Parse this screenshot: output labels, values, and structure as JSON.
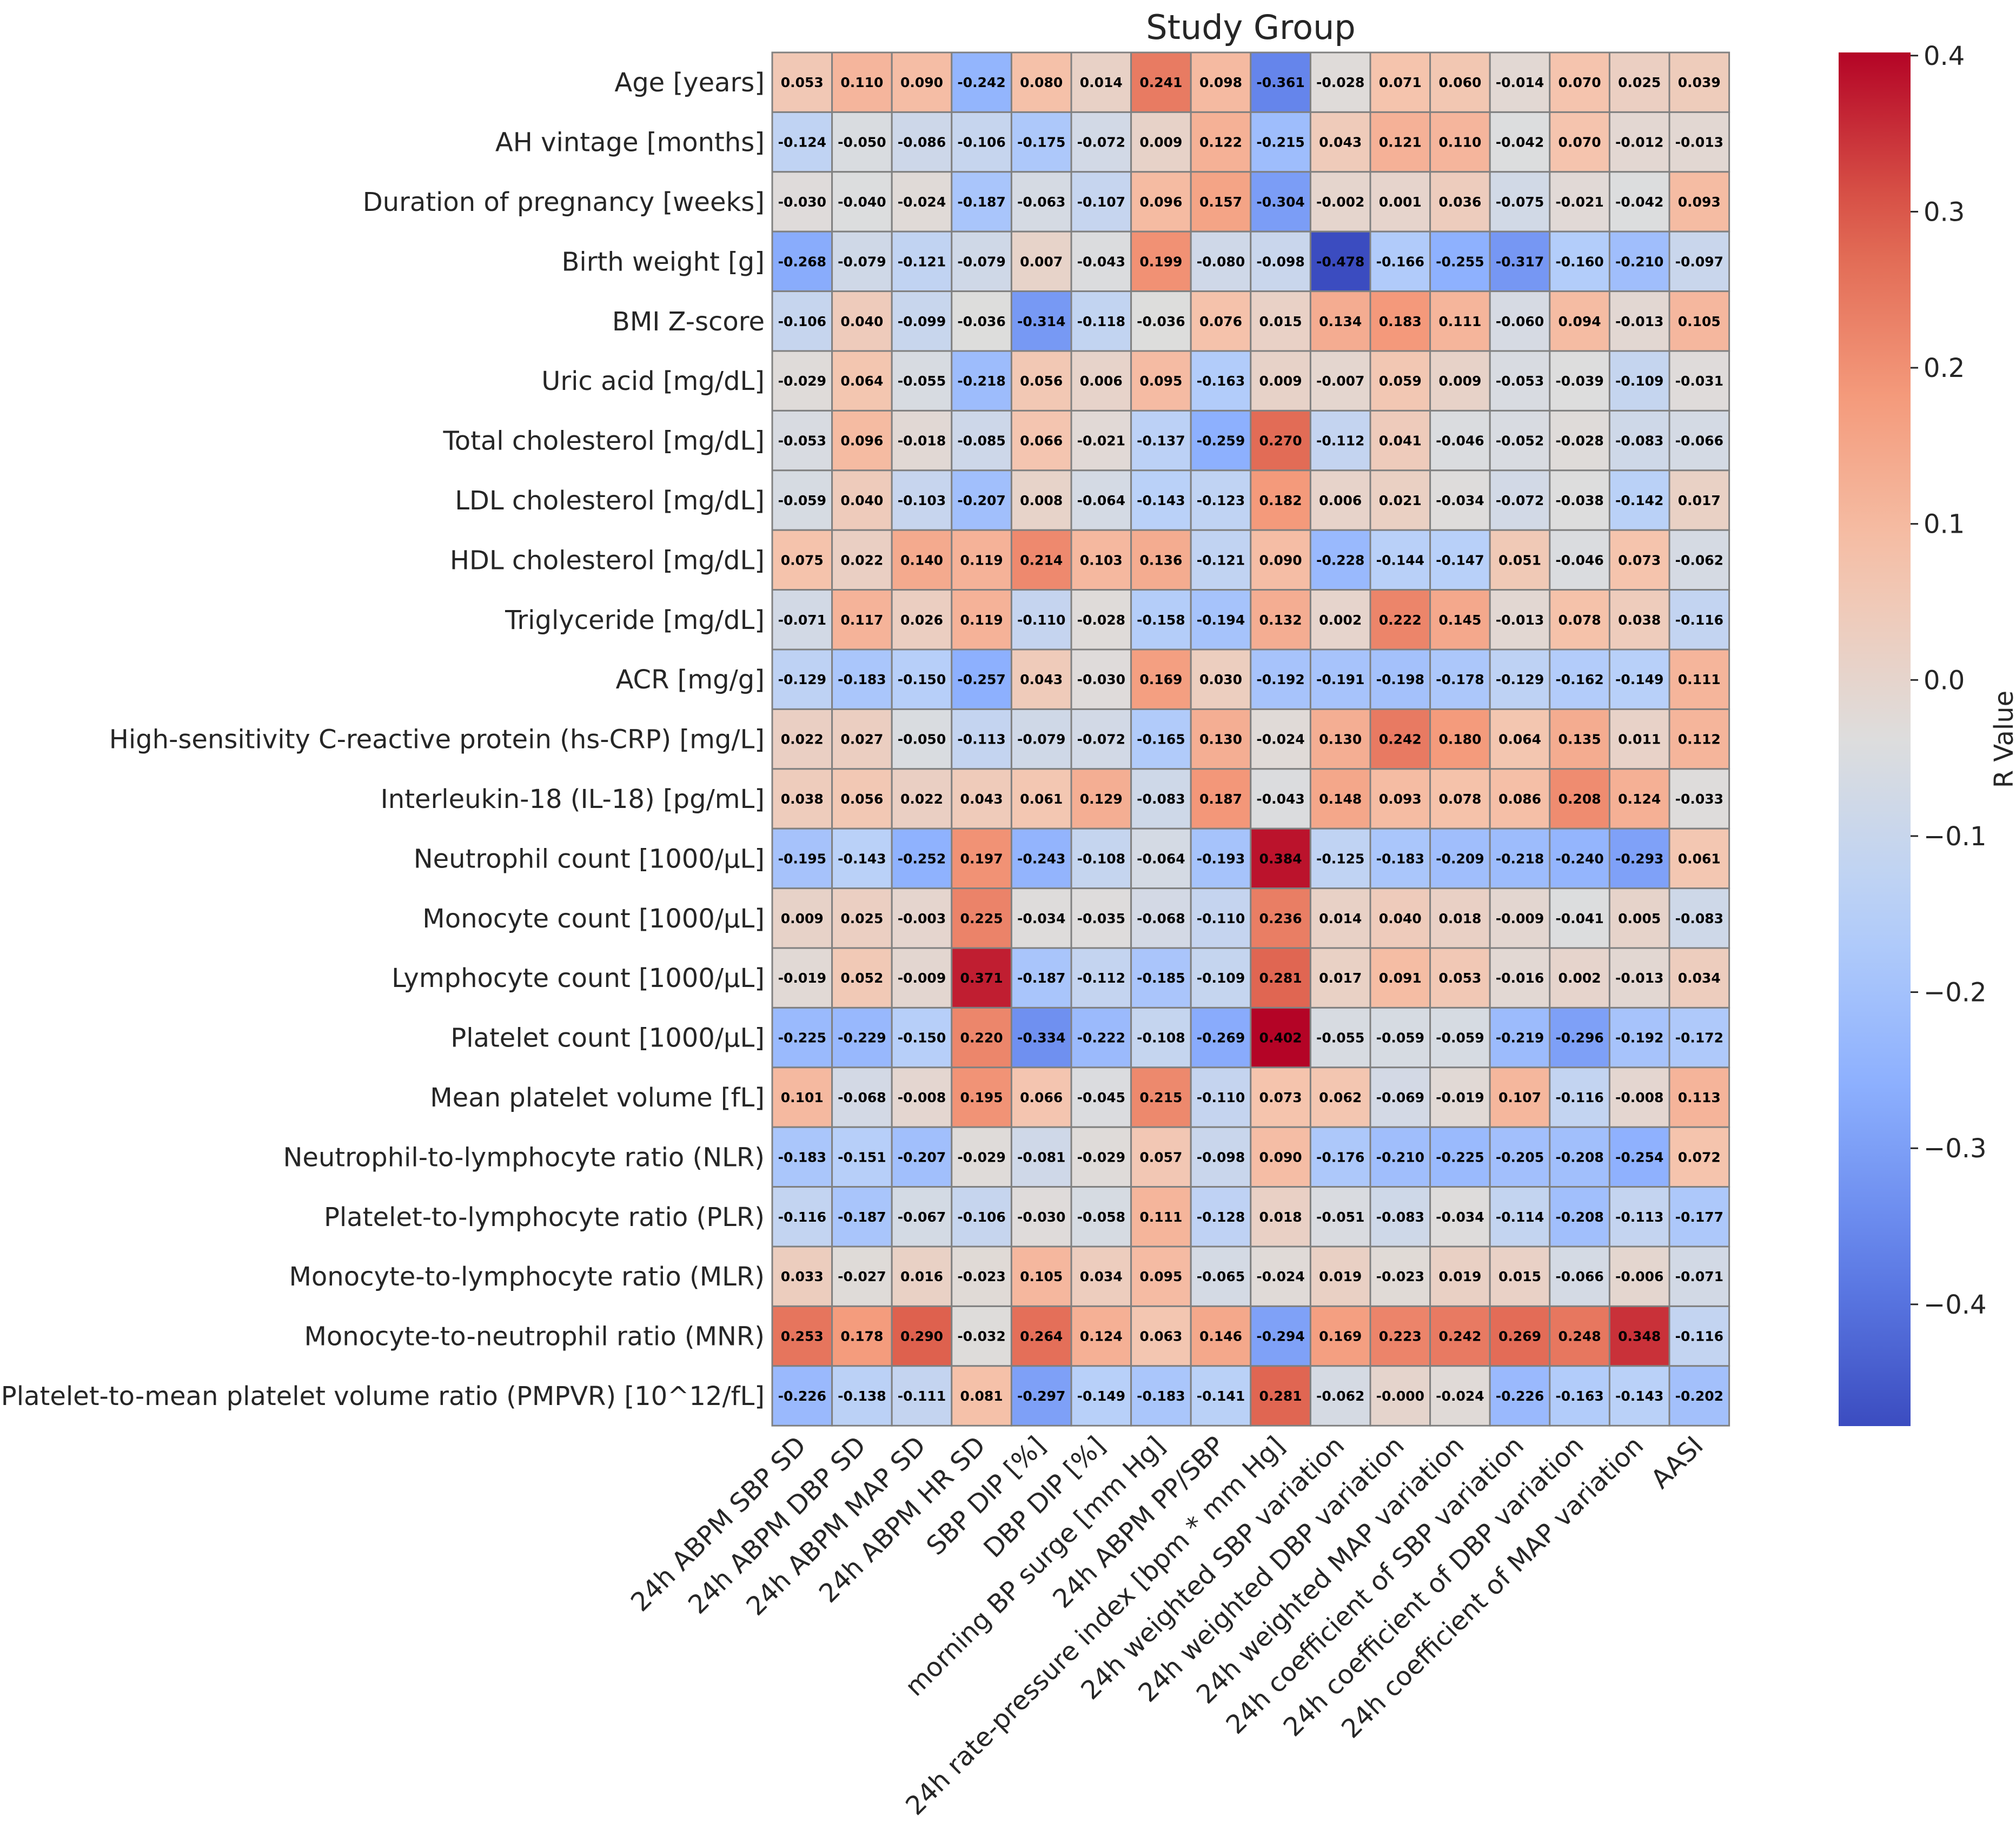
{
  "chart_data": {
    "type": "heatmap",
    "title": "Study Group",
    "colorbar_label": "R Value",
    "color_range": [
      -0.478,
      0.402
    ],
    "colorbar_ticks": [
      0.4,
      0.3,
      0.2,
      0.1,
      0.0,
      -0.1,
      -0.2,
      -0.3,
      -0.4
    ],
    "colorbar_tick_labels": [
      "0.4",
      "0.3",
      "0.2",
      "0.1",
      "0.0",
      "−0.1",
      "−0.2",
      "−0.3",
      "−0.4"
    ],
    "rows": [
      "Age [years]",
      "AH vintage [months]",
      "Duration of pregnancy [weeks]",
      "Birth weight [g]",
      "BMI Z-score",
      "Uric acid [mg/dL]",
      "Total cholesterol [mg/dL]",
      "LDL cholesterol [mg/dL]",
      "HDL cholesterol [mg/dL]",
      "Triglyceride [mg/dL]",
      "ACR [mg/g]",
      "High-sensitivity C-reactive protein (hs-CRP) [mg/L]",
      "Interleukin-18 (IL-18) [pg/mL]",
      "Neutrophil count [1000/µL]",
      "Monocyte count [1000/µL]",
      "Lymphocyte count [1000/µL]",
      "Platelet count [1000/µL]",
      "Mean platelet volume [fL]",
      "Neutrophil-to-lymphocyte ratio (NLR)",
      "Platelet-to-lymphocyte ratio (PLR)",
      "Monocyte-to-lymphocyte ratio (MLR)",
      "Monocyte-to-neutrophil ratio (MNR)",
      "Platelet-to-mean platelet volume ratio (PMPVR) [10^12/fL]"
    ],
    "columns": [
      "24h ABPM SBP SD",
      "24h ABPM DBP SD",
      "24h ABPM MAP SD",
      "24h ABPM HR SD",
      "SBP DIP [%]",
      "DBP DIP [%]",
      "morning BP surge [mm Hg]",
      "24h ABPM PP/SBP",
      "24h rate-pressure index [bpm * mm Hg]",
      "24h weighted SBP variation",
      "24h weighted DBP variation",
      "24h weighted MAP variation",
      "24h coefficient of SBP variation",
      "24h coefficient of DBP variation",
      "24h coefficient of MAP variation",
      "AASI"
    ],
    "values": [
      [
        "0.053",
        "0.110",
        "0.090",
        "-0.242",
        "0.080",
        "0.014",
        "0.241",
        "0.098",
        "-0.361",
        "-0.028",
        "0.071",
        "0.060",
        "-0.014",
        "0.070",
        "0.025",
        "0.039"
      ],
      [
        "-0.124",
        "-0.050",
        "-0.086",
        "-0.106",
        "-0.175",
        "-0.072",
        "0.009",
        "0.122",
        "-0.215",
        "0.043",
        "0.121",
        "0.110",
        "-0.042",
        "0.070",
        "-0.012",
        "-0.013"
      ],
      [
        "-0.030",
        "-0.040",
        "-0.024",
        "-0.187",
        "-0.063",
        "-0.107",
        "0.096",
        "0.157",
        "-0.304",
        "-0.002",
        "0.001",
        "0.036",
        "-0.075",
        "-0.021",
        "-0.042",
        "0.093"
      ],
      [
        "-0.268",
        "-0.079",
        "-0.121",
        "-0.079",
        "0.007",
        "-0.043",
        "0.199",
        "-0.080",
        "-0.098",
        "-0.478",
        "-0.166",
        "-0.255",
        "-0.317",
        "-0.160",
        "-0.210",
        "-0.097"
      ],
      [
        "-0.106",
        "0.040",
        "-0.099",
        "-0.036",
        "-0.314",
        "-0.118",
        "-0.036",
        "0.076",
        "0.015",
        "0.134",
        "0.183",
        "0.111",
        "-0.060",
        "0.094",
        "-0.013",
        "0.105"
      ],
      [
        "-0.029",
        "0.064",
        "-0.055",
        "-0.218",
        "0.056",
        "0.006",
        "0.095",
        "-0.163",
        "0.009",
        "-0.007",
        "0.059",
        "0.009",
        "-0.053",
        "-0.039",
        "-0.109",
        "-0.031"
      ],
      [
        "-0.053",
        "0.096",
        "-0.018",
        "-0.085",
        "0.066",
        "-0.021",
        "-0.137",
        "-0.259",
        "0.270",
        "-0.112",
        "0.041",
        "-0.046",
        "-0.052",
        "-0.028",
        "-0.083",
        "-0.066"
      ],
      [
        "-0.059",
        "0.040",
        "-0.103",
        "-0.207",
        "0.008",
        "-0.064",
        "-0.143",
        "-0.123",
        "0.182",
        "0.006",
        "0.021",
        "-0.034",
        "-0.072",
        "-0.038",
        "-0.142",
        "0.017"
      ],
      [
        "0.075",
        "0.022",
        "0.140",
        "0.119",
        "0.214",
        "0.103",
        "0.136",
        "-0.121",
        "0.090",
        "-0.228",
        "-0.144",
        "-0.147",
        "0.051",
        "-0.046",
        "0.073",
        "-0.062"
      ],
      [
        "-0.071",
        "0.117",
        "0.026",
        "0.119",
        "-0.110",
        "-0.028",
        "-0.158",
        "-0.194",
        "0.132",
        "0.002",
        "0.222",
        "0.145",
        "-0.013",
        "0.078",
        "0.038",
        "-0.116"
      ],
      [
        "-0.129",
        "-0.183",
        "-0.150",
        "-0.257",
        "0.043",
        "-0.030",
        "0.169",
        "0.030",
        "-0.192",
        "-0.191",
        "-0.198",
        "-0.178",
        "-0.129",
        "-0.162",
        "-0.149",
        "0.111"
      ],
      [
        "0.022",
        "0.027",
        "-0.050",
        "-0.113",
        "-0.079",
        "-0.072",
        "-0.165",
        "0.130",
        "-0.024",
        "0.130",
        "0.242",
        "0.180",
        "0.064",
        "0.135",
        "0.011",
        "0.112"
      ],
      [
        "0.038",
        "0.056",
        "0.022",
        "0.043",
        "0.061",
        "0.129",
        "-0.083",
        "0.187",
        "-0.043",
        "0.148",
        "0.093",
        "0.078",
        "0.086",
        "0.208",
        "0.124",
        "-0.033"
      ],
      [
        "-0.195",
        "-0.143",
        "-0.252",
        "0.197",
        "-0.243",
        "-0.108",
        "-0.064",
        "-0.193",
        "0.384",
        "-0.125",
        "-0.183",
        "-0.209",
        "-0.218",
        "-0.240",
        "-0.293",
        "0.061"
      ],
      [
        "0.009",
        "0.025",
        "-0.003",
        "0.225",
        "-0.034",
        "-0.035",
        "-0.068",
        "-0.110",
        "0.236",
        "0.014",
        "0.040",
        "0.018",
        "-0.009",
        "-0.041",
        "0.005",
        "-0.083"
      ],
      [
        "-0.019",
        "0.052",
        "-0.009",
        "0.371",
        "-0.187",
        "-0.112",
        "-0.185",
        "-0.109",
        "0.281",
        "0.017",
        "0.091",
        "0.053",
        "-0.016",
        "0.002",
        "-0.013",
        "0.034"
      ],
      [
        "-0.225",
        "-0.229",
        "-0.150",
        "0.220",
        "-0.334",
        "-0.222",
        "-0.108",
        "-0.269",
        "0.402",
        "-0.055",
        "-0.059",
        "-0.059",
        "-0.219",
        "-0.296",
        "-0.192",
        "-0.172"
      ],
      [
        "0.101",
        "-0.068",
        "-0.008",
        "0.195",
        "0.066",
        "-0.045",
        "0.215",
        "-0.110",
        "0.073",
        "0.062",
        "-0.069",
        "-0.019",
        "0.107",
        "-0.116",
        "-0.008",
        "0.113"
      ],
      [
        "-0.183",
        "-0.151",
        "-0.207",
        "-0.029",
        "-0.081",
        "-0.029",
        "0.057",
        "-0.098",
        "0.090",
        "-0.176",
        "-0.210",
        "-0.225",
        "-0.205",
        "-0.208",
        "-0.254",
        "0.072"
      ],
      [
        "-0.116",
        "-0.187",
        "-0.067",
        "-0.106",
        "-0.030",
        "-0.058",
        "0.111",
        "-0.128",
        "0.018",
        "-0.051",
        "-0.083",
        "-0.034",
        "-0.114",
        "-0.208",
        "-0.113",
        "-0.177"
      ],
      [
        "0.033",
        "-0.027",
        "0.016",
        "-0.023",
        "0.105",
        "0.034",
        "0.095",
        "-0.065",
        "-0.024",
        "0.019",
        "-0.023",
        "0.019",
        "0.015",
        "-0.066",
        "-0.006",
        "-0.071"
      ],
      [
        "0.253",
        "0.178",
        "0.290",
        "-0.032",
        "0.264",
        "0.124",
        "0.063",
        "0.146",
        "-0.294",
        "0.169",
        "0.223",
        "0.242",
        "0.269",
        "0.248",
        "0.348",
        "-0.116"
      ],
      [
        "-0.226",
        "-0.138",
        "-0.111",
        "0.081",
        "-0.297",
        "-0.149",
        "-0.183",
        "-0.141",
        "0.281",
        "-0.062",
        "-0.000",
        "-0.024",
        "-0.226",
        "-0.163",
        "-0.143",
        "-0.202"
      ]
    ]
  }
}
